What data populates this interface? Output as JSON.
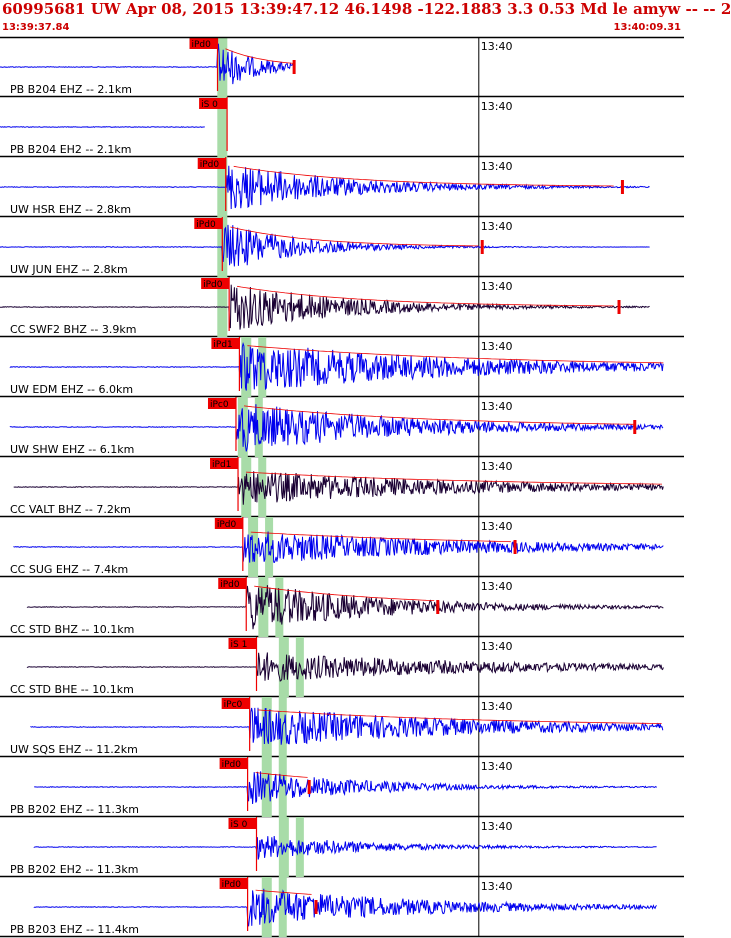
{
  "header": {
    "title": "60995681 UW Apr 08, 2015 13:39:47.12   46.1498 -122.1883  3.3 0.53 Md le amyw -- --   2",
    "start_time": "13:39:37.84",
    "end_time": "13:40:09.31"
  },
  "tick_label": "13:40",
  "colors": {
    "trace_blue": "#0000ee",
    "trace_dark": "#1a0033",
    "pick_red": "#ee0000",
    "window_green": "#a8dca8",
    "border": "#000000"
  },
  "channels": [
    {
      "label": "PB B204 EHZ -- 2.1km",
      "color": "blue",
      "pick": "iPd0",
      "p": 0.318,
      "s": null,
      "green_center": 0.325,
      "amp": 1.0,
      "decay": 18,
      "end": 0.43,
      "start": 0.0,
      "coda": 0.43,
      "marker": 0.43
    },
    {
      "label": "PB B204 EH2 -- 2.1km",
      "color": "blue",
      "pick": "iS 0",
      "p": 0.332,
      "s": null,
      "green_center": 0.325,
      "amp": 0.5,
      "decay": 12,
      "end": 0.3,
      "start": 0.0,
      "coda": null,
      "marker": null
    },
    {
      "label": "UW HSR EHZ -- 2.8km",
      "color": "blue",
      "pick": "iPd0",
      "p": 0.33,
      "s": null,
      "green_center": 0.325,
      "amp": 1.0,
      "decay": 6,
      "end": 0.95,
      "start": 0.0,
      "coda": 0.9,
      "marker": 0.91
    },
    {
      "label": "UW JUN EHZ -- 2.8km",
      "color": "blue",
      "pick": "iPd0",
      "p": 0.325,
      "s": null,
      "green_center": 0.325,
      "amp": 1.0,
      "decay": 9,
      "end": 0.95,
      "start": 0.0,
      "coda": 0.7,
      "marker": 0.705
    },
    {
      "label": "CC SWF2 BHZ -- 3.9km",
      "color": "dark",
      "pick": "iPd0",
      "p": 0.335,
      "s": null,
      "green_center": 0.325,
      "amp": 1.0,
      "decay": 6,
      "end": 0.95,
      "start": 0.0,
      "coda": 0.9,
      "marker": 0.905
    },
    {
      "label": "UW EDM EHZ -- 6.0km",
      "color": "blue",
      "pick": "iPd1",
      "p": 0.35,
      "s": null,
      "green_center": 0.36,
      "amp": 1.0,
      "decay": 3,
      "end": 0.97,
      "start": 0.015,
      "coda": 0.97,
      "marker": null
    },
    {
      "label": "UW SHW EHZ -- 6.1km",
      "color": "blue",
      "pick": "iPc0",
      "p": 0.345,
      "s": null,
      "green_center": 0.355,
      "amp": 1.0,
      "decay": 4,
      "end": 0.97,
      "start": 0.015,
      "coda": 0.93,
      "marker": 0.928
    },
    {
      "label": "CC VALT BHZ -- 7.2km",
      "color": "dark",
      "pick": "iPd1",
      "p": 0.348,
      "s": null,
      "green_center": 0.36,
      "amp": 0.7,
      "decay": 3,
      "end": 0.97,
      "start": 0.02,
      "coda": 0.97,
      "marker": null
    },
    {
      "label": "CC SUG EHZ -- 7.4km",
      "color": "blue",
      "pick": "iPd0",
      "p": 0.355,
      "s": null,
      "green_center": 0.37,
      "amp": 0.7,
      "decay": 3,
      "end": 0.97,
      "start": 0.02,
      "coda": 0.75,
      "marker": 0.753
    },
    {
      "label": "CC STD BHZ -- 10.1km",
      "color": "dark",
      "pick": "iPd0",
      "p": 0.36,
      "s": null,
      "green_center": 0.385,
      "amp": 1.0,
      "decay": 5,
      "end": 0.97,
      "start": 0.04,
      "coda": 0.64,
      "marker": 0.64
    },
    {
      "label": "CC STD BHE -- 10.1km",
      "color": "dark",
      "pick": "iS 1",
      "p": 0.375,
      "s": null,
      "green_center": 0.415,
      "amp": 0.6,
      "decay": 3,
      "end": 0.97,
      "start": 0.04,
      "coda": null,
      "marker": null
    },
    {
      "label": "UW SQS EHZ -- 11.2km",
      "color": "blue",
      "pick": "iPc0",
      "p": 0.365,
      "s": null,
      "green_center": 0.39,
      "amp": 0.8,
      "decay": 3,
      "end": 0.97,
      "start": 0.045,
      "coda": 0.97,
      "marker": null
    },
    {
      "label": "PB B202 EHZ -- 11.3km",
      "color": "blue",
      "pick": "iPd0",
      "p": 0.362,
      "s": null,
      "green_center": 0.39,
      "amp": 0.7,
      "decay": 6,
      "end": 0.96,
      "start": 0.05,
      "coda": 0.45,
      "marker": 0.452
    },
    {
      "label": "PB B202 EH2 -- 11.3km",
      "color": "blue",
      "pick": "iS 0",
      "p": 0.375,
      "s": null,
      "green_center": 0.415,
      "amp": 0.5,
      "decay": 6,
      "end": 0.96,
      "start": 0.05,
      "coda": null,
      "marker": null
    },
    {
      "label": "PB B203 EHZ -- 11.4km",
      "color": "blue",
      "pick": "iPd0",
      "p": 0.362,
      "s": null,
      "green_center": 0.39,
      "amp": 0.8,
      "decay": 4,
      "end": 0.96,
      "start": 0.05,
      "coda": 0.46,
      "marker": 0.462
    }
  ]
}
